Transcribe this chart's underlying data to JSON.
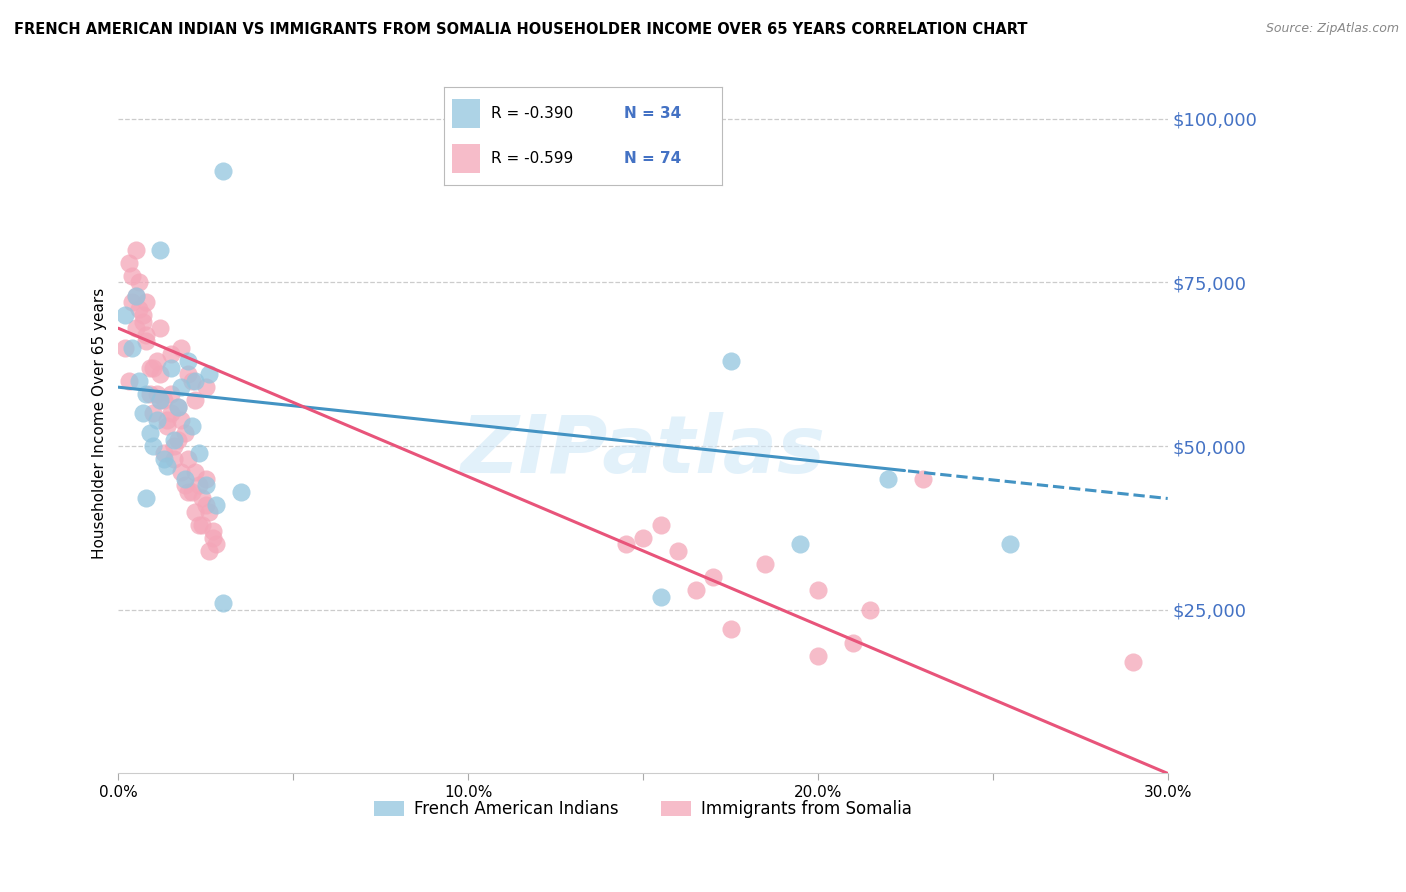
{
  "title": "FRENCH AMERICAN INDIAN VS IMMIGRANTS FROM SOMALIA HOUSEHOLDER INCOME OVER 65 YEARS CORRELATION CHART",
  "source": "Source: ZipAtlas.com",
  "ylabel": "Householder Income Over 65 years",
  "xlim": [
    0.0,
    0.3
  ],
  "ylim": [
    0,
    107000
  ],
  "yticks": [
    25000,
    50000,
    75000,
    100000
  ],
  "ytick_labels": [
    "$25,000",
    "$50,000",
    "$75,000",
    "$100,000"
  ],
  "xticks": [
    0.0,
    0.05,
    0.1,
    0.15,
    0.2,
    0.25,
    0.3
  ],
  "xtick_labels": [
    "0.0%",
    "",
    "10.0%",
    "",
    "20.0%",
    "",
    "30.0%"
  ],
  "blue_R": -0.39,
  "blue_N": 34,
  "pink_R": -0.599,
  "pink_N": 74,
  "blue_color": "#92c5de",
  "pink_color": "#f4a6b8",
  "blue_line_color": "#4393c3",
  "pink_line_color": "#e8547a",
  "watermark_color": "#d0e8f8",
  "watermark": "ZIPatlas",
  "blue_scatter_x": [
    0.002,
    0.004,
    0.005,
    0.006,
    0.007,
    0.008,
    0.009,
    0.01,
    0.011,
    0.012,
    0.013,
    0.014,
    0.015,
    0.016,
    0.017,
    0.018,
    0.019,
    0.02,
    0.021,
    0.022,
    0.023,
    0.025,
    0.026,
    0.028,
    0.03,
    0.035,
    0.012,
    0.008,
    0.175,
    0.195,
    0.255,
    0.155,
    0.22,
    0.03
  ],
  "blue_scatter_y": [
    70000,
    65000,
    73000,
    60000,
    55000,
    58000,
    52000,
    50000,
    54000,
    57000,
    48000,
    47000,
    62000,
    51000,
    56000,
    59000,
    45000,
    63000,
    53000,
    60000,
    49000,
    44000,
    61000,
    41000,
    26000,
    43000,
    80000,
    42000,
    63000,
    35000,
    35000,
    27000,
    45000,
    92000
  ],
  "pink_scatter_x": [
    0.002,
    0.003,
    0.004,
    0.005,
    0.006,
    0.007,
    0.008,
    0.009,
    0.01,
    0.011,
    0.012,
    0.013,
    0.014,
    0.015,
    0.016,
    0.017,
    0.018,
    0.019,
    0.02,
    0.021,
    0.022,
    0.023,
    0.024,
    0.025,
    0.026,
    0.027,
    0.028,
    0.003,
    0.005,
    0.007,
    0.009,
    0.011,
    0.013,
    0.015,
    0.017,
    0.019,
    0.021,
    0.023,
    0.025,
    0.027,
    0.004,
    0.006,
    0.008,
    0.01,
    0.012,
    0.014,
    0.016,
    0.018,
    0.02,
    0.022,
    0.024,
    0.026,
    0.15,
    0.16,
    0.17,
    0.185,
    0.2,
    0.215,
    0.23,
    0.155,
    0.175,
    0.165,
    0.145,
    0.2,
    0.21,
    0.29,
    0.018,
    0.02,
    0.022,
    0.012,
    0.025,
    0.008,
    0.015,
    0.005
  ],
  "pink_scatter_y": [
    65000,
    60000,
    72000,
    68000,
    75000,
    70000,
    67000,
    58000,
    55000,
    63000,
    61000,
    57000,
    53000,
    64000,
    50000,
    56000,
    54000,
    52000,
    48000,
    60000,
    46000,
    44000,
    42000,
    59000,
    40000,
    37000,
    35000,
    78000,
    73000,
    69000,
    62000,
    58000,
    49000,
    55000,
    51000,
    44000,
    43000,
    38000,
    41000,
    36000,
    76000,
    71000,
    66000,
    62000,
    57000,
    54000,
    48000,
    46000,
    43000,
    40000,
    38000,
    34000,
    36000,
    34000,
    30000,
    32000,
    28000,
    25000,
    45000,
    38000,
    22000,
    28000,
    35000,
    18000,
    20000,
    17000,
    65000,
    61000,
    57000,
    68000,
    45000,
    72000,
    58000,
    80000
  ]
}
